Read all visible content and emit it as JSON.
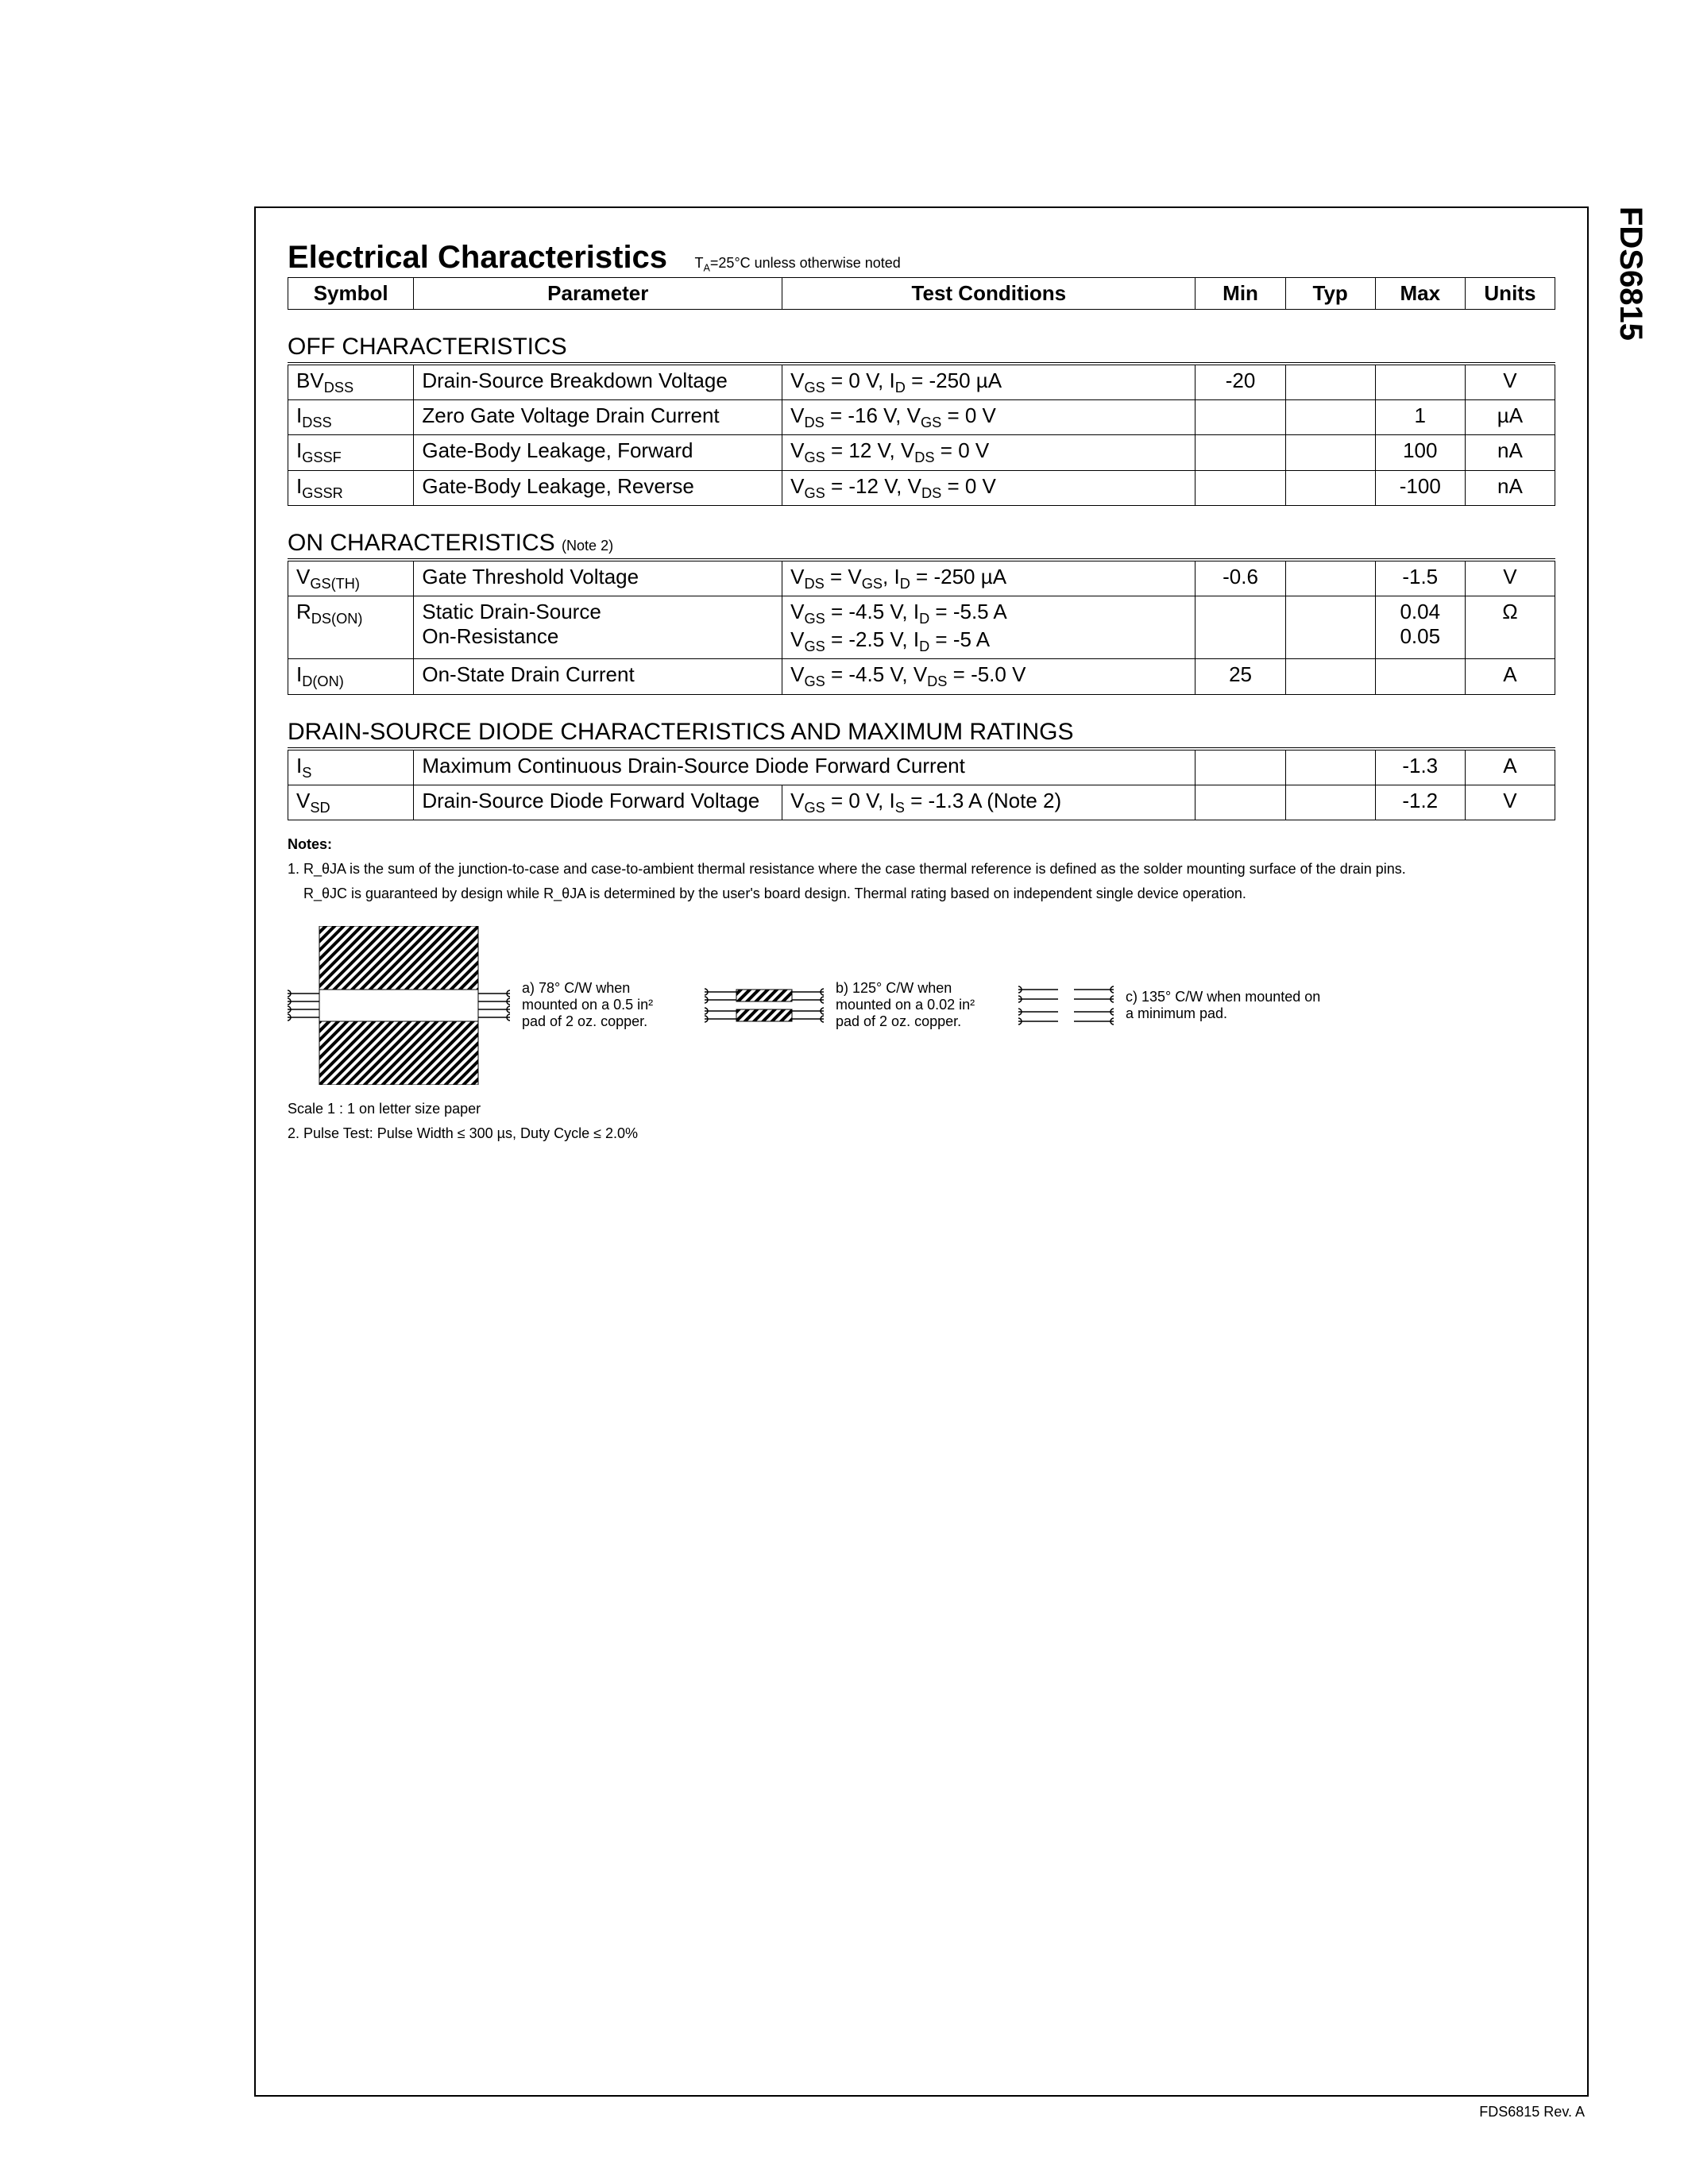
{
  "side_label": "FDS6815",
  "footer": "FDS6815 Rev. A",
  "title": "Electrical Characteristics",
  "title_note": "T_A=25°C unless otherwise noted",
  "header": {
    "symbol": "Symbol",
    "parameter": "Parameter",
    "test": "Test Conditions",
    "min": "Min",
    "typ": "Typ",
    "max": "Max",
    "units": "Units"
  },
  "sections": {
    "off": {
      "title": "OFF CHARACTERISTICS",
      "rows": [
        {
          "sym_main": "BV",
          "sym_sub": "DSS",
          "param": "Drain-Source Breakdown Voltage",
          "test": "V_GS = 0 V, I_D = -250 µA",
          "min": "-20",
          "typ": "",
          "max": "",
          "units": "V"
        },
        {
          "sym_main": "I",
          "sym_sub": "DSS",
          "param": "Zero Gate Voltage Drain Current",
          "test": "V_DS = -16 V, V_GS = 0 V",
          "min": "",
          "typ": "",
          "max": "1",
          "units": "µA"
        },
        {
          "sym_main": "I",
          "sym_sub": "GSSF",
          "param": "Gate-Body Leakage, Forward",
          "test": "V_GS = 12 V, V_DS = 0 V",
          "min": "",
          "typ": "",
          "max": "100",
          "units": "nA"
        },
        {
          "sym_main": "I",
          "sym_sub": "GSSR",
          "param": "Gate-Body Leakage, Reverse",
          "test": "V_GS = -12 V, V_DS = 0 V",
          "min": "",
          "typ": "",
          "max": "-100",
          "units": "nA"
        }
      ]
    },
    "on": {
      "title": "ON CHARACTERISTICS",
      "note": "(Note 2)",
      "rows": [
        {
          "sym_main": "V",
          "sym_sub": "GS(TH)",
          "param": "Gate Threshold Voltage",
          "test": "V_DS = V_GS, I_D = -250 µA",
          "min": "-0.6",
          "typ": "",
          "max": "-1.5",
          "units": "V"
        },
        {
          "sym_main": "R",
          "sym_sub": "DS(ON)",
          "param": "Static Drain-Source\nOn-Resistance",
          "test": "V_GS = -4.5 V, I_D = -5.5 A\nV_GS = -2.5 V, I_D = -5 A",
          "min": "",
          "typ": "",
          "max": "0.04\n0.05",
          "units": "Ω"
        },
        {
          "sym_main": "I",
          "sym_sub": "D(ON)",
          "param": "On-State Drain Current",
          "test": "V_GS = -4.5 V, V_DS = -5.0 V",
          "min": "25",
          "typ": "",
          "max": "",
          "units": "A"
        }
      ]
    },
    "diode": {
      "title": "DRAIN-SOURCE DIODE CHARACTERISTICS AND MAXIMUM RATINGS",
      "rows": [
        {
          "sym_main": "I",
          "sym_sub": "S",
          "param": "Maximum Continuous Drain-Source Diode Forward Current",
          "test": "",
          "min": "",
          "typ": "",
          "max": "-1.3",
          "units": "A",
          "param_colspan": true
        },
        {
          "sym_main": "V",
          "sym_sub": "SD",
          "param": "Drain-Source Diode Forward Voltage",
          "test": "V_GS = 0 V, I_S = -1.3 A          (Note 2)",
          "min": "",
          "typ": "",
          "max": "-1.2",
          "units": "V"
        }
      ]
    }
  },
  "notes": {
    "title": "Notes:",
    "n1a": "1. R_θJA is the sum of the junction-to-case and case-to-ambient thermal resistance where the case thermal reference is defined as the solder mounting surface of the drain pins.",
    "n1b": "R_θJC is guaranteed by design while R_θJA is determined by the user's board design. Thermal rating based on independent single device operation.",
    "scale": "Scale  1  :  1  on letter size paper",
    "n2": "2.  Pulse Test: Pulse Width ≤ 300 µs, Duty Cycle ≤ 2.0%"
  },
  "diagrams": {
    "a": "a) 78° C/W when mounted on a 0.5 in² pad of 2 oz. copper.",
    "b": "b) 125° C/W when mounted on a 0.02 in² pad of 2 oz. copper.",
    "c": "c) 135° C/W when mounted on a minimum pad."
  },
  "styling": {
    "border_color": "#000000",
    "background": "#ffffff",
    "title_fontsize": 40,
    "body_fontsize": 26,
    "note_fontsize": 18,
    "hatch_fill": "#000000"
  }
}
